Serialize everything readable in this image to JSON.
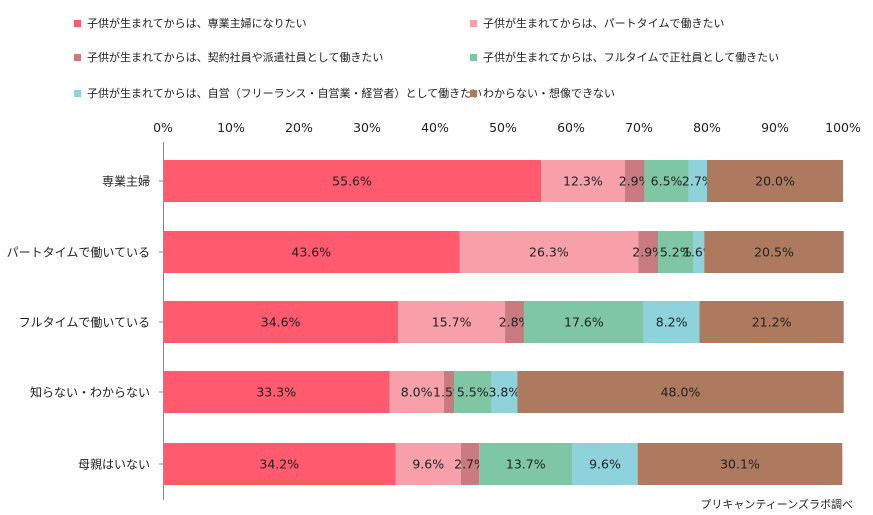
{
  "chart_data": {
    "type": "bar",
    "orientation": "horizontal",
    "stacked": true,
    "categories": [
      "専業主婦",
      "パートタイムで働いている",
      "フルタイムで働いている",
      "知らない・わからない",
      "母親はいない"
    ],
    "series": [
      {
        "name": "子供が生まれてからは、専業主婦になりたい",
        "color": "#ff5a6e",
        "values": [
          55.6,
          43.6,
          34.6,
          33.3,
          34.2
        ]
      },
      {
        "name": "子供が生まれてからは、パートタイムで働きたい",
        "color": "#f7a0aa",
        "values": [
          12.3,
          26.3,
          15.7,
          8.0,
          9.6
        ]
      },
      {
        "name": "子供が生まれてからは、契約社員や派遣社員として働きたい",
        "color": "#c97b80",
        "values": [
          2.9,
          2.9,
          2.8,
          1.5,
          2.7
        ]
      },
      {
        "name": "子供が生まれてからは、フルタイムで正社員として働きたい",
        "color": "#7fc6a4",
        "values": [
          6.5,
          5.2,
          17.6,
          5.5,
          13.7
        ]
      },
      {
        "name": "子供が生まれてからは、自営（フリーランス・自営業・経営者）として働きたい",
        "color": "#8ed3dc",
        "values": [
          2.7,
          1.6,
          8.2,
          3.8,
          9.6
        ]
      },
      {
        "name": "わからない・想像できない",
        "color": "#ad7a5f",
        "values": [
          20.0,
          20.5,
          21.2,
          48.0,
          30.1
        ]
      }
    ],
    "xlim": [
      0,
      100
    ],
    "xticks": [
      "0%",
      "10%",
      "20%",
      "30%",
      "40%",
      "50%",
      "60%",
      "70%",
      "80%",
      "90%",
      "100%"
    ],
    "xaxis_position": "top",
    "grid": false,
    "legend_position": "top",
    "value_suffix": "%"
  },
  "source": "プリキャンティーンズラボ調べ"
}
